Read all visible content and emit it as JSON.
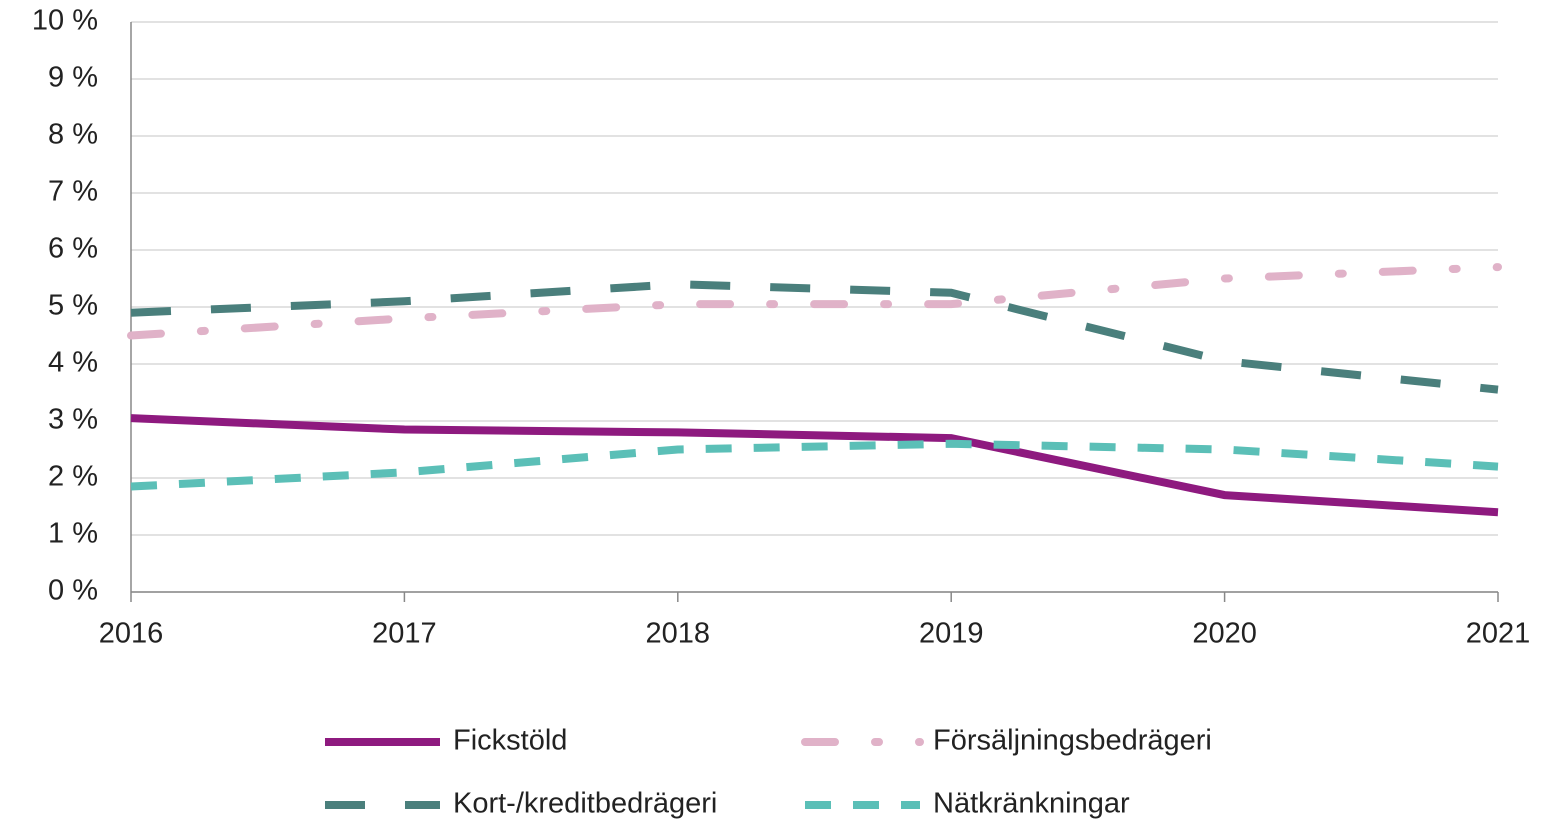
{
  "chart_data": {
    "type": "line",
    "x": [
      2016,
      2017,
      2018,
      2019,
      2020,
      2021
    ],
    "xlim": [
      2016,
      2021
    ],
    "xticks": [
      2016,
      2017,
      2018,
      2019,
      2020,
      2021
    ],
    "ylim": [
      0,
      10
    ],
    "yticks": [
      {
        "value": 0,
        "label": "0 %"
      },
      {
        "value": 1,
        "label": "1 %"
      },
      {
        "value": 2,
        "label": "2 %"
      },
      {
        "value": 3,
        "label": "3 %"
      },
      {
        "value": 4,
        "label": "4 %"
      },
      {
        "value": 5,
        "label": "5 %"
      },
      {
        "value": 6,
        "label": "6 %"
      },
      {
        "value": 7,
        "label": "7 %"
      },
      {
        "value": 8,
        "label": "8 %"
      },
      {
        "value": 9,
        "label": "9 %"
      },
      {
        "value": 10,
        "label": "10 %"
      }
    ],
    "grid": true,
    "legend": "bottom",
    "series": [
      {
        "name": "Fickstöld",
        "color": "#8e1a7f",
        "style": "solid",
        "values": [
          3.05,
          2.85,
          2.8,
          2.7,
          1.7,
          1.4
        ]
      },
      {
        "name": "Försäljningsbedrägeri",
        "color": "#e0b2c8",
        "style": "dashdot",
        "values": [
          4.5,
          4.8,
          5.05,
          5.05,
          5.5,
          5.7
        ]
      },
      {
        "name": "Kort-/kreditbedrägeri",
        "color": "#4a7f7c",
        "style": "longdash",
        "values": [
          4.9,
          5.1,
          5.4,
          5.25,
          4.05,
          3.55
        ]
      },
      {
        "name": "Nätkränkningar",
        "color": "#5bbfb7",
        "style": "dash",
        "values": [
          1.85,
          2.1,
          2.5,
          2.6,
          2.5,
          2.2
        ]
      }
    ]
  }
}
